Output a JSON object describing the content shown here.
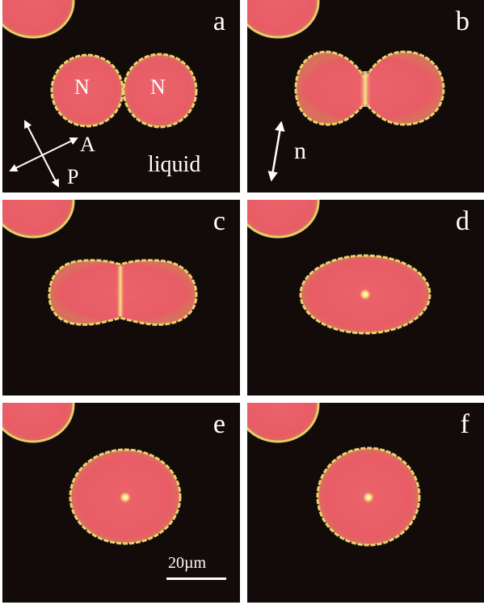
{
  "panels": [
    {
      "id": "a",
      "letter": "a"
    },
    {
      "id": "b",
      "letter": "b"
    },
    {
      "id": "c",
      "letter": "c"
    },
    {
      "id": "d",
      "letter": "d"
    },
    {
      "id": "e",
      "letter": "e"
    },
    {
      "id": "f",
      "letter": "f"
    }
  ],
  "annotations": {
    "nematic_left": "N",
    "nematic_right": "N",
    "analyzer": "A",
    "polarizer": "P",
    "phase": "liquid",
    "director": "n"
  },
  "scale_bar": {
    "label": "20µm"
  },
  "colors": {
    "background": "#120b09",
    "droplet": "#e85d66",
    "rim": "#e8d46a",
    "defect": "#fff4a0",
    "text": "#ffffff"
  }
}
